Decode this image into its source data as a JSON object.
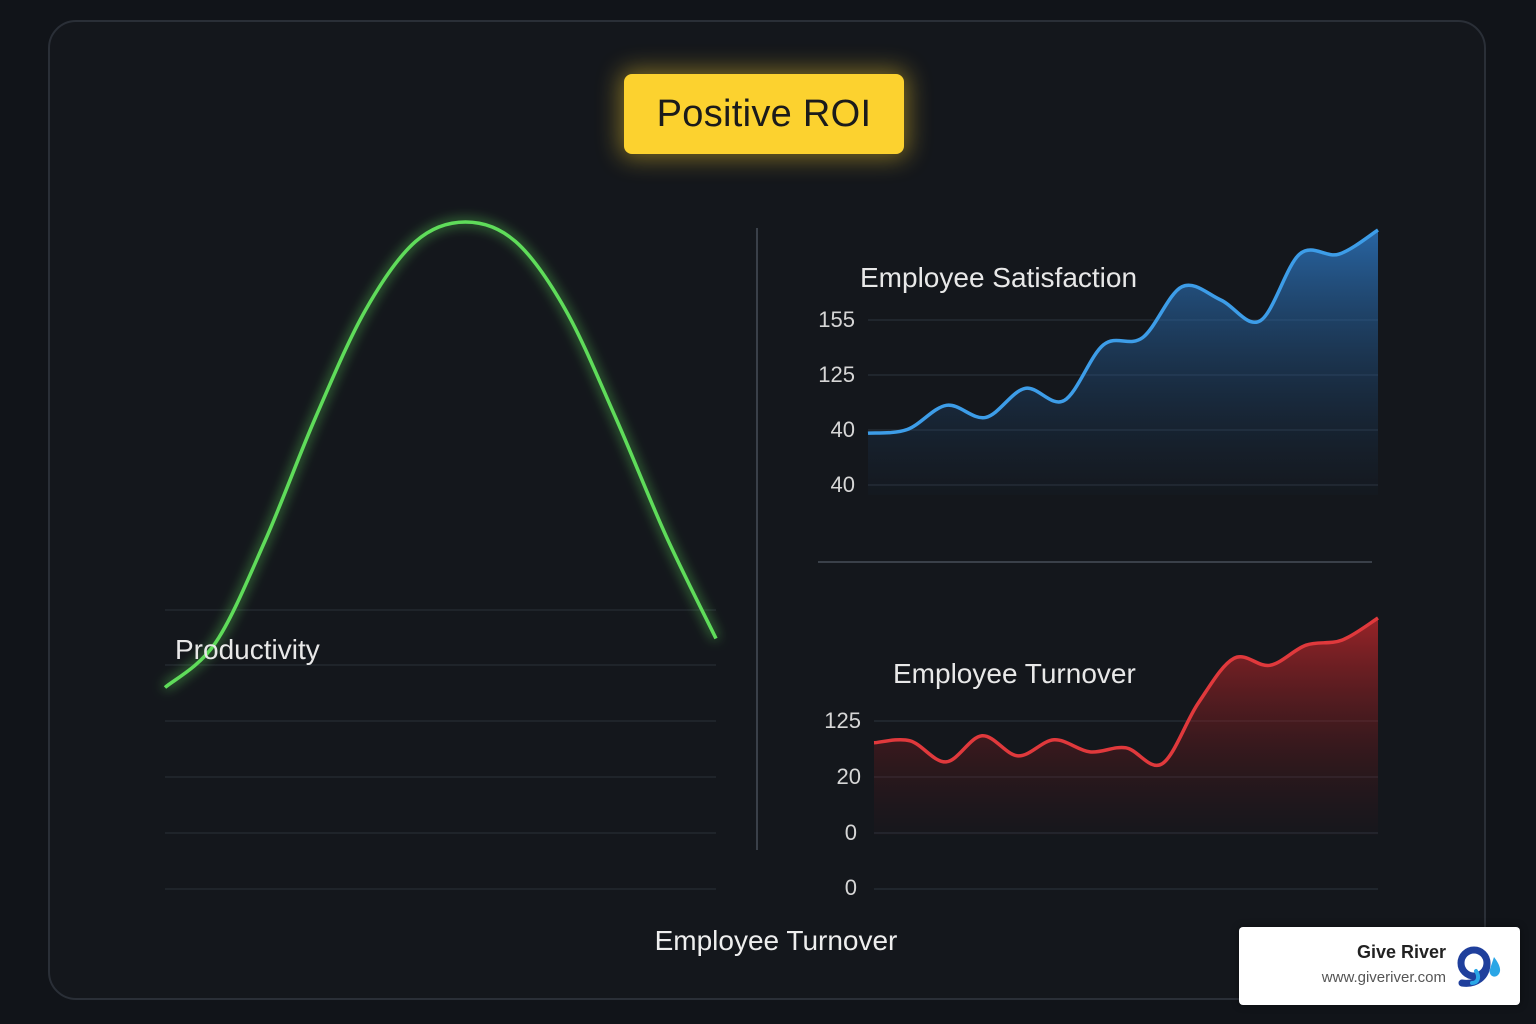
{
  "badge": {
    "label": "Positive ROI",
    "color": "#fcd22f"
  },
  "chart_data": [
    {
      "type": "line",
      "title": "Productivity",
      "color": "#5fdc5a",
      "grid": true,
      "series": [
        {
          "values": [
            0.05,
            0.14,
            0.35,
            0.6,
            0.82,
            0.96,
            1.0,
            0.96,
            0.82,
            0.6,
            0.36,
            0.15
          ]
        }
      ]
    },
    {
      "type": "area",
      "title": "Employee Satisfaction",
      "color": "#3d9de8",
      "grid": true,
      "ytick_labels": [
        "155",
        "125",
        "40",
        "40"
      ],
      "series": [
        {
          "values": [
            47,
            50,
            70,
            60,
            84,
            74,
            120,
            126,
            168,
            157,
            140,
            195,
            195,
            215
          ]
        }
      ]
    },
    {
      "type": "area",
      "title": "Employee Turnover",
      "color": "#e0393c",
      "grid": true,
      "ytick_labels": [
        "125",
        "20",
        "0",
        "0"
      ],
      "series": [
        {
          "values": [
            31,
            33,
            12,
            38,
            18,
            34,
            22,
            26,
            10,
            70,
            115,
            108,
            128,
            133,
            155
          ]
        }
      ]
    }
  ],
  "footer_label": "Employee Turnover",
  "brand": {
    "name": "Give River",
    "url": "www.giveriver.com"
  }
}
